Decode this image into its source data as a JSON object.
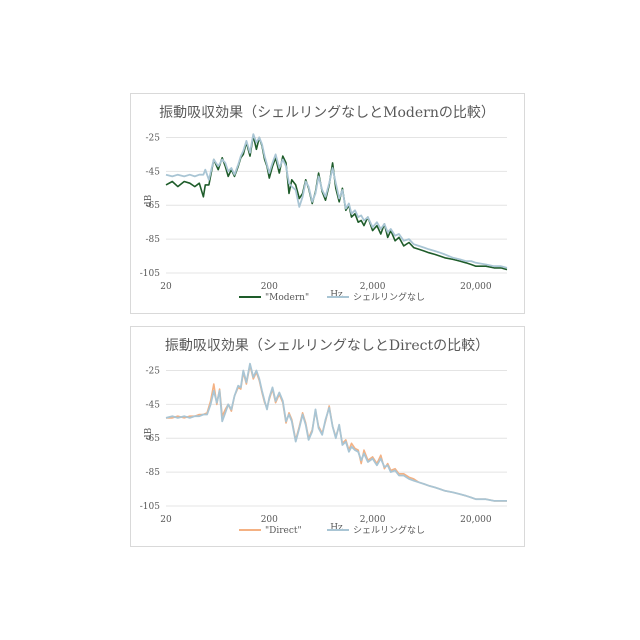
{
  "chart_data": [
    {
      "type": "line",
      "title": "振動吸収効果（シェルリングなしとModernの比較）",
      "xlabel": "Hz",
      "ylabel": "dB",
      "xscale": "log",
      "xlim": [
        20,
        40000
      ],
      "ylim": [
        -105,
        -20
      ],
      "xticks": [
        "20",
        "200",
        "2,000",
        "20,000"
      ],
      "xtick_values": [
        20,
        200,
        2000,
        20000
      ],
      "yticks": [
        "-25",
        "-45",
        "-65",
        "-85",
        "-105"
      ],
      "ytick_values": [
        -25,
        -45,
        -65,
        -85,
        -105
      ],
      "grid": "horizontal",
      "legend_position": "bottom",
      "series": [
        {
          "name": "\"Modern\"",
          "color": "#1e5c2a",
          "x": [
            20,
            23,
            26,
            30,
            34,
            38,
            42,
            46,
            48,
            52,
            58,
            64,
            70,
            75,
            80,
            86,
            92,
            100,
            106,
            112,
            120,
            130,
            140,
            150,
            160,
            170,
            180,
            190,
            200,
            215,
            230,
            250,
            270,
            290,
            310,
            330,
            360,
            390,
            420,
            450,
            480,
            520,
            560,
            600,
            650,
            700,
            760,
            820,
            880,
            950,
            1020,
            1100,
            1180,
            1250,
            1350,
            1450,
            1550,
            1650,
            1800,
            2000,
            2200,
            2400,
            2600,
            2800,
            3000,
            3300,
            3600,
            4000,
            4500,
            5000,
            5600,
            6300,
            7000,
            8000,
            9000,
            10000,
            12000,
            14000,
            16000,
            18000,
            20000,
            25000,
            30000,
            35000,
            40000
          ],
          "y": [
            -53,
            -51,
            -54,
            -51,
            -52,
            -54,
            -52,
            -60,
            -53,
            -53,
            -38,
            -44,
            -37,
            -42,
            -48,
            -44,
            -48,
            -42,
            -37,
            -35,
            -28,
            -36,
            -24,
            -32,
            -25,
            -30,
            -38,
            -42,
            -49,
            -42,
            -37,
            -46,
            -36,
            -40,
            -58,
            -50,
            -53,
            -61,
            -58,
            -50,
            -55,
            -64,
            -57,
            -46,
            -57,
            -62,
            -53,
            -40,
            -55,
            -63,
            -55,
            -68,
            -65,
            -72,
            -70,
            -75,
            -74,
            -77,
            -72,
            -80,
            -77,
            -82,
            -76,
            -84,
            -80,
            -86,
            -84,
            -89,
            -87,
            -90,
            -91,
            -92,
            -93,
            -94,
            -95,
            -96,
            -97,
            -98,
            -99,
            -100,
            -101,
            -101,
            -102,
            -102,
            -103
          ]
        },
        {
          "name": "シェルリングなし",
          "color": "#a9c5d4",
          "x": [
            20,
            23,
            26,
            30,
            34,
            38,
            42,
            46,
            48,
            52,
            58,
            64,
            70,
            75,
            80,
            86,
            92,
            100,
            106,
            112,
            120,
            130,
            140,
            150,
            160,
            170,
            180,
            190,
            200,
            215,
            230,
            250,
            270,
            290,
            310,
            330,
            360,
            390,
            420,
            450,
            480,
            520,
            560,
            600,
            650,
            700,
            760,
            820,
            880,
            950,
            1020,
            1100,
            1180,
            1250,
            1350,
            1450,
            1550,
            1650,
            1800,
            2000,
            2200,
            2400,
            2600,
            2800,
            3000,
            3300,
            3600,
            4000,
            4500,
            5000,
            5600,
            6300,
            7000,
            8000,
            9000,
            10000,
            12000,
            14000,
            16000,
            18000,
            20000,
            25000,
            30000,
            35000,
            40000
          ],
          "y": [
            -47,
            -48,
            -47,
            -48,
            -47,
            -48,
            -47,
            -47,
            -44,
            -50,
            -38,
            -42,
            -38,
            -40,
            -45,
            -43,
            -47,
            -41,
            -36,
            -33,
            -27,
            -34,
            -23,
            -28,
            -25,
            -29,
            -36,
            -41,
            -46,
            -40,
            -35,
            -43,
            -38,
            -42,
            -52,
            -54,
            -56,
            -66,
            -60,
            -51,
            -54,
            -63,
            -58,
            -48,
            -56,
            -60,
            -52,
            -43,
            -52,
            -61,
            -56,
            -67,
            -64,
            -70,
            -68,
            -72,
            -71,
            -74,
            -72,
            -78,
            -75,
            -79,
            -76,
            -81,
            -79,
            -83,
            -82,
            -86,
            -85,
            -88,
            -89,
            -90,
            -91,
            -92,
            -93,
            -94,
            -96,
            -97,
            -98,
            -98,
            -99,
            -100,
            -101,
            -101,
            -102
          ]
        }
      ]
    },
    {
      "type": "line",
      "title": "振動吸収効果（シェルリングなしとDirectの比較）",
      "xlabel": "Hz",
      "ylabel": "dB",
      "xscale": "log",
      "xlim": [
        20,
        40000
      ],
      "ylim": [
        -105,
        -20
      ],
      "xticks": [
        "20",
        "200",
        "2,000",
        "20,000"
      ],
      "xtick_values": [
        20,
        200,
        2000,
        20000
      ],
      "yticks": [
        "-25",
        "-45",
        "-65",
        "-85",
        "-105"
      ],
      "ytick_values": [
        -25,
        -45,
        -65,
        -85,
        -105
      ],
      "grid": "horizontal",
      "legend_position": "bottom",
      "series": [
        {
          "name": "\"Direct\"",
          "color": "#f4b183",
          "x": [
            20,
            23,
            26,
            30,
            34,
            38,
            42,
            46,
            50,
            54,
            58,
            62,
            66,
            70,
            75,
            80,
            86,
            92,
            100,
            106,
            112,
            120,
            130,
            140,
            150,
            160,
            170,
            180,
            190,
            200,
            215,
            230,
            250,
            270,
            290,
            310,
            330,
            360,
            390,
            420,
            450,
            480,
            520,
            560,
            600,
            650,
            700,
            760,
            820,
            880,
            950,
            1020,
            1100,
            1180,
            1250,
            1350,
            1450,
            1550,
            1650,
            1800,
            2000,
            2200,
            2400,
            2600,
            2800,
            3000,
            3300,
            3600,
            4000,
            4500,
            5000,
            5600,
            6300,
            7000,
            8000,
            9000,
            10000,
            12000,
            14000,
            16000,
            18000,
            20000,
            25000,
            30000,
            35000,
            40000
          ],
          "y": [
            -53,
            -53,
            -52,
            -53,
            -52,
            -52,
            -51,
            -51,
            -50,
            -43,
            -33,
            -45,
            -36,
            -52,
            -48,
            -45,
            -49,
            -40,
            -35,
            -36,
            -26,
            -33,
            -22,
            -30,
            -26,
            -31,
            -38,
            -44,
            -47,
            -42,
            -36,
            -44,
            -39,
            -44,
            -56,
            -50,
            -54,
            -66,
            -58,
            -50,
            -56,
            -65,
            -60,
            -49,
            -58,
            -62,
            -55,
            -46,
            -58,
            -64,
            -58,
            -68,
            -66,
            -72,
            -68,
            -71,
            -72,
            -80,
            -72,
            -78,
            -76,
            -80,
            -75,
            -83,
            -80,
            -84,
            -83,
            -86,
            -86,
            -88,
            -89,
            -91,
            -92,
            -93,
            -94,
            -95,
            -96,
            -97,
            -98,
            -99,
            -100,
            -101,
            -101,
            -102,
            -102,
            -102
          ]
        },
        {
          "name": "シェルリングなし",
          "color": "#a9c5d4",
          "x": [
            20,
            23,
            26,
            30,
            34,
            38,
            42,
            46,
            50,
            54,
            58,
            62,
            66,
            70,
            75,
            80,
            86,
            92,
            100,
            106,
            112,
            120,
            130,
            140,
            150,
            160,
            170,
            180,
            190,
            200,
            215,
            230,
            250,
            270,
            290,
            310,
            330,
            360,
            390,
            420,
            450,
            480,
            520,
            560,
            600,
            650,
            700,
            760,
            820,
            880,
            950,
            1020,
            1100,
            1180,
            1250,
            1350,
            1450,
            1550,
            1650,
            1800,
            2000,
            2200,
            2400,
            2600,
            2800,
            3000,
            3300,
            3600,
            4000,
            4500,
            5000,
            5600,
            6300,
            7000,
            8000,
            9000,
            10000,
            12000,
            14000,
            16000,
            18000,
            20000,
            25000,
            30000,
            35000,
            40000
          ],
          "y": [
            -53,
            -52,
            -53,
            -52,
            -53,
            -52,
            -52,
            -51,
            -51,
            -45,
            -37,
            -44,
            -37,
            -55,
            -50,
            -45,
            -48,
            -40,
            -34,
            -35,
            -25,
            -32,
            -21,
            -29,
            -25,
            -30,
            -37,
            -43,
            -48,
            -41,
            -35,
            -43,
            -38,
            -43,
            -55,
            -51,
            -55,
            -67,
            -59,
            -51,
            -57,
            -66,
            -61,
            -48,
            -59,
            -63,
            -54,
            -47,
            -58,
            -65,
            -57,
            -69,
            -67,
            -73,
            -70,
            -72,
            -73,
            -78,
            -74,
            -79,
            -77,
            -81,
            -77,
            -82,
            -81,
            -85,
            -84,
            -87,
            -87,
            -89,
            -90,
            -91,
            -92,
            -93,
            -94,
            -95,
            -96,
            -97,
            -98,
            -99,
            -100,
            -101,
            -101,
            -102,
            -102,
            -102
          ]
        }
      ]
    }
  ]
}
